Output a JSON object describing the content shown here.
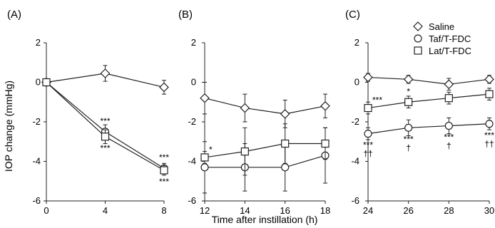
{
  "chart_data": {
    "type": "line",
    "xlabel": "Time after instillation (h)",
    "ylabel": "IOP change (mmHg)",
    "ylim": [
      -6,
      2
    ],
    "y_ticks": [
      "2",
      "0",
      "-2",
      "-4",
      "-6"
    ],
    "legend": {
      "placement": "top-right",
      "entries": [
        {
          "label": "Saline",
          "marker": "diamond"
        },
        {
          "label": "Taf/T-FDC",
          "marker": "circle"
        },
        {
          "label": "Lat/T-FDC",
          "marker": "square"
        }
      ]
    },
    "panels": [
      {
        "label": "(A)",
        "x": [
          0,
          4,
          8
        ],
        "x_ticks": [
          "0",
          "4",
          "8"
        ],
        "xlim": [
          0,
          8
        ],
        "series": [
          {
            "name": "Saline",
            "marker": "diamond",
            "y": [
              0,
              0.45,
              -0.25
            ],
            "err": [
              0.15,
              0.4,
              0.35
            ]
          },
          {
            "name": "Taf/T-FDC",
            "marker": "circle",
            "y": [
              0,
              -2.5,
              -4.35
            ],
            "err": [
              0,
              0.35,
              0.25
            ]
          },
          {
            "name": "Lat/T-FDC",
            "marker": "square",
            "y": [
              0,
              -2.75,
              -4.45
            ],
            "err": [
              0,
              0.35,
              0.25
            ]
          }
        ],
        "annotations": [
          {
            "x": 4,
            "y": -2.5,
            "text": "***",
            "position": "above"
          },
          {
            "x": 4,
            "y": -2.75,
            "text": "***",
            "position": "below"
          },
          {
            "x": 8,
            "y": -4.35,
            "text": "***",
            "position": "above"
          },
          {
            "x": 8,
            "y": -4.45,
            "text": "***",
            "position": "below"
          }
        ]
      },
      {
        "label": "(B)",
        "x": [
          12,
          14,
          16,
          18
        ],
        "x_ticks": [
          "12",
          "14",
          "16",
          "18"
        ],
        "xlim": [
          12,
          18
        ],
        "series": [
          {
            "name": "Saline",
            "marker": "diamond",
            "y": [
              -0.8,
              -1.3,
              -1.6,
              -1.2
            ],
            "err": [
              0.8,
              0.7,
              0.7,
              0.6
            ]
          },
          {
            "name": "Taf/T-FDC",
            "marker": "circle",
            "y": [
              -4.3,
              -4.3,
              -4.3,
              -3.7
            ],
            "err": [
              1.3,
              1.2,
              1.2,
              1.4
            ]
          },
          {
            "name": "Lat/T-FDC",
            "marker": "square",
            "y": [
              -3.8,
              -3.5,
              -3.1,
              -3.1
            ],
            "err": [
              0.3,
              1.2,
              1.0,
              0.8
            ]
          }
        ],
        "annotations": [
          {
            "x": 12,
            "y": -3.8,
            "text": "*",
            "position": "upper-right"
          }
        ]
      },
      {
        "label": "(C)",
        "x": [
          24,
          26,
          28,
          30
        ],
        "x_ticks": [
          "24",
          "26",
          "28",
          "30"
        ],
        "xlim": [
          24,
          30
        ],
        "series": [
          {
            "name": "Saline",
            "marker": "diamond",
            "y": [
              0.25,
              0.15,
              -0.1,
              0.15
            ],
            "err": [
              0.2,
              0.2,
              0.3,
              0.2
            ]
          },
          {
            "name": "Taf/T-FDC",
            "marker": "circle",
            "y": [
              -2.6,
              -2.3,
              -2.2,
              -2.1
            ],
            "err": [
              0.3,
              0.4,
              0.4,
              0.3
            ]
          },
          {
            "name": "Lat/T-FDC",
            "marker": "square",
            "y": [
              -1.3,
              -1.0,
              -0.8,
              -0.6
            ],
            "err": [
              0.3,
              0.3,
              0.3,
              0.3
            ]
          }
        ],
        "annotations": [
          {
            "x": 24,
            "y": -1.3,
            "text": "***",
            "position": "upper-right"
          },
          {
            "x": 26,
            "y": -1.0,
            "text": "*",
            "position": "above"
          },
          {
            "x": 24,
            "y": -2.6,
            "text": "***",
            "position": "below"
          },
          {
            "x": 24,
            "y": -2.6,
            "text": "††",
            "position": "below-2"
          },
          {
            "x": 26,
            "y": -2.3,
            "text": "***",
            "position": "below"
          },
          {
            "x": 26,
            "y": -2.3,
            "text": "†",
            "position": "below-2"
          },
          {
            "x": 28,
            "y": -2.2,
            "text": "***",
            "position": "below"
          },
          {
            "x": 28,
            "y": -2.2,
            "text": "†",
            "position": "below-2"
          },
          {
            "x": 30,
            "y": -2.1,
            "text": "***",
            "position": "below"
          },
          {
            "x": 30,
            "y": -2.1,
            "text": "††",
            "position": "below-2"
          }
        ]
      }
    ]
  }
}
